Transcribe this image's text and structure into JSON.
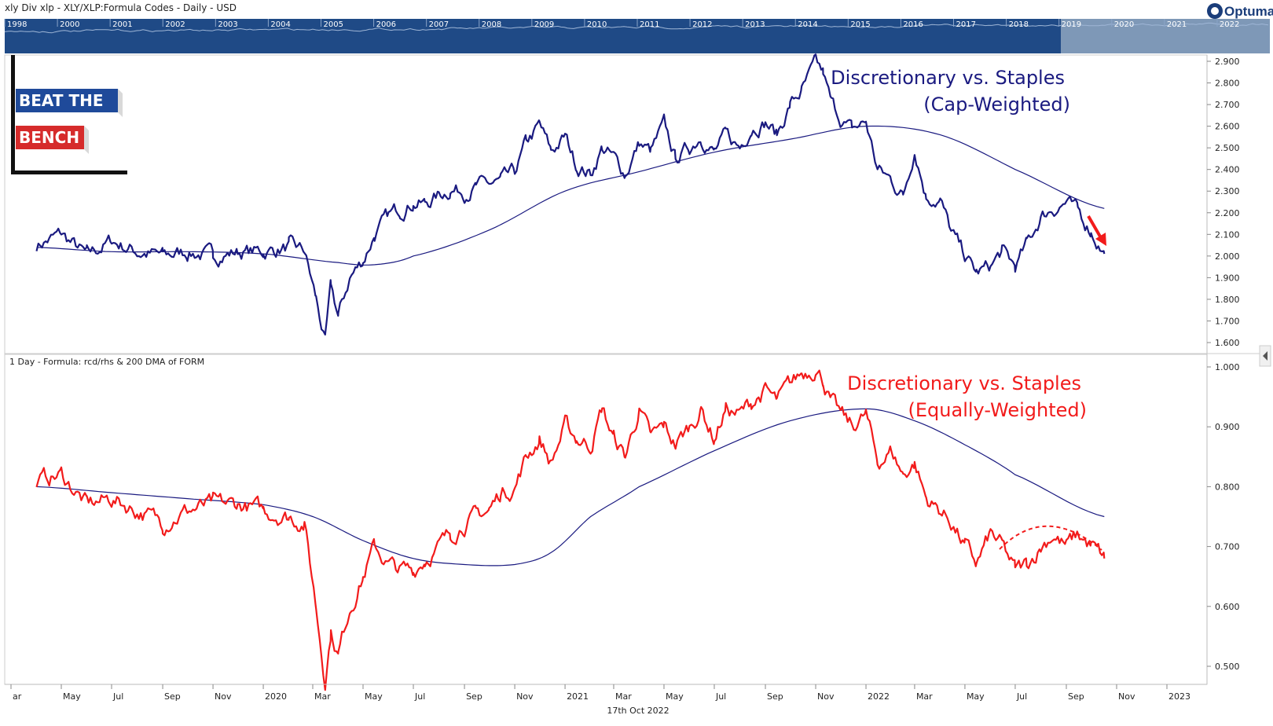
{
  "header": {
    "title": "xly Div xlp -  XLY/XLP:Formula Codes - Daily - USD",
    "brand": "Optuma"
  },
  "navigator": {
    "years": [
      "1998",
      "2000",
      "2001",
      "2002",
      "2003",
      "2004",
      "2005",
      "2006",
      "2007",
      "2008",
      "2009",
      "2010",
      "2011",
      "2012",
      "2013",
      "2014",
      "2015",
      "2016",
      "2017",
      "2018",
      "2019",
      "2020",
      "2021",
      "2022"
    ]
  },
  "logo": {
    "line1": "BEAT THE",
    "line2": "BENCH"
  },
  "footer": {
    "date": "17th Oct 2022"
  },
  "colors": {
    "navy": "#1a1a80",
    "red": "#f21b1b",
    "navigator_bg": "#1f4a86",
    "navigator_sel": "#8fa6c0",
    "logo_blue": "#1f4a9a",
    "logo_red": "#d62b2b"
  },
  "chart_data": [
    {
      "type": "line",
      "panel": "top",
      "series": [
        {
          "kind": "price",
          "color": "#1a1a80",
          "x": [
            "2019-04-01",
            "2019-05-01",
            "2019-06-01",
            "2019-07-01",
            "2019-08-01",
            "2019-09-01",
            "2019-10-01",
            "2019-11-01",
            "2019-12-01",
            "2020-01-01",
            "2020-02-01",
            "2020-02-20",
            "2020-03-05",
            "2020-03-16",
            "2020-03-23",
            "2020-04-01",
            "2020-04-15",
            "2020-05-01",
            "2020-05-15",
            "2020-06-01",
            "2020-06-15",
            "2020-07-01",
            "2020-07-15",
            "2020-08-01",
            "2020-08-15",
            "2020-09-01",
            "2020-09-15",
            "2020-10-01",
            "2020-10-15",
            "2020-11-01",
            "2020-11-15",
            "2020-12-01",
            "2020-12-15",
            "2021-01-01",
            "2021-01-15",
            "2021-02-01",
            "2021-02-15",
            "2021-03-01",
            "2021-03-15",
            "2021-04-01",
            "2021-04-15",
            "2021-05-01",
            "2021-05-15",
            "2021-06-01",
            "2021-06-15",
            "2021-07-01",
            "2021-07-15",
            "2021-08-01",
            "2021-08-15",
            "2021-09-01",
            "2021-09-15",
            "2021-10-01",
            "2021-10-15",
            "2021-11-01",
            "2021-11-10",
            "2021-11-20",
            "2021-12-01",
            "2021-12-15",
            "2022-01-01",
            "2022-01-15",
            "2022-02-01",
            "2022-02-15",
            "2022-03-01",
            "2022-03-15",
            "2022-04-01",
            "2022-04-15",
            "2022-05-01",
            "2022-05-15",
            "2022-06-01",
            "2022-06-15",
            "2022-07-01",
            "2022-07-15",
            "2022-08-01",
            "2022-08-15",
            "2022-09-01",
            "2022-09-15",
            "2022-10-01",
            "2022-10-17"
          ],
          "values": [
            2.05,
            2.1,
            2.0,
            2.07,
            2.02,
            2.0,
            2.02,
            2.0,
            2.02,
            2.02,
            2.04,
            2.02,
            1.8,
            1.6,
            1.85,
            1.72,
            1.9,
            1.98,
            2.1,
            2.18,
            2.22,
            2.25,
            2.24,
            2.28,
            2.31,
            2.3,
            2.32,
            2.33,
            2.34,
            2.38,
            2.52,
            2.6,
            2.48,
            2.55,
            2.42,
            2.38,
            2.5,
            2.45,
            2.38,
            2.52,
            2.48,
            2.6,
            2.45,
            2.5,
            2.56,
            2.48,
            2.55,
            2.5,
            2.6,
            2.62,
            2.56,
            2.7,
            2.76,
            2.88,
            2.84,
            2.7,
            2.64,
            2.58,
            2.62,
            2.4,
            2.35,
            2.28,
            2.5,
            2.28,
            2.26,
            2.1,
            2.0,
            1.92,
            1.95,
            2.02,
            1.95,
            2.05,
            2.18,
            2.22,
            2.25,
            2.2,
            2.12,
            2.01
          ]
        },
        {
          "kind": "200 DMA",
          "color": "#1a1a80",
          "x": [
            "2019-04-01",
            "2019-07-01",
            "2019-10-01",
            "2020-01-01",
            "2020-04-01",
            "2020-05-15",
            "2020-07-01",
            "2020-10-01",
            "2021-01-01",
            "2021-04-01",
            "2021-07-01",
            "2021-10-01",
            "2022-01-01",
            "2022-04-01",
            "2022-07-01",
            "2022-10-17"
          ],
          "values": [
            2.04,
            2.02,
            2.02,
            2.01,
            1.97,
            1.96,
            2.0,
            2.12,
            2.3,
            2.39,
            2.48,
            2.54,
            2.6,
            2.56,
            2.4,
            2.22
          ]
        }
      ],
      "ylim": [
        1.55,
        2.93
      ],
      "yticks": [
        "1.600",
        "1.700",
        "1.800",
        "1.900",
        "2.000",
        "2.100",
        "2.200",
        "2.300",
        "2.400",
        "2.500",
        "2.600",
        "2.700",
        "2.800",
        "2.900"
      ],
      "annotations": [
        "Discretionary vs. Staples",
        "(Cap-Weighted)"
      ]
    },
    {
      "type": "line",
      "panel": "bottom",
      "label": "1 Day - Formula:  rcd/rhs & 200 DMA of FORM",
      "series": [
        {
          "kind": "price",
          "color": "#f21b1b",
          "x": [
            "2019-04-01",
            "2019-05-01",
            "2019-06-01",
            "2019-07-01",
            "2019-08-01",
            "2019-09-01",
            "2019-10-01",
            "2019-11-01",
            "2019-12-01",
            "2020-01-01",
            "2020-02-01",
            "2020-02-20",
            "2020-03-05",
            "2020-03-16",
            "2020-03-23",
            "2020-04-01",
            "2020-04-15",
            "2020-05-01",
            "2020-05-15",
            "2020-06-01",
            "2020-06-15",
            "2020-07-01",
            "2020-07-15",
            "2020-08-01",
            "2020-08-15",
            "2020-09-01",
            "2020-09-15",
            "2020-10-01",
            "2020-10-15",
            "2020-11-01",
            "2020-11-15",
            "2020-12-01",
            "2020-12-15",
            "2021-01-01",
            "2021-01-15",
            "2021-02-01",
            "2021-02-15",
            "2021-03-01",
            "2021-03-15",
            "2021-04-01",
            "2021-04-15",
            "2021-05-01",
            "2021-05-15",
            "2021-06-01",
            "2021-06-15",
            "2021-07-01",
            "2021-07-15",
            "2021-08-01",
            "2021-08-15",
            "2021-09-01",
            "2021-09-15",
            "2021-10-01",
            "2021-10-15",
            "2021-11-01",
            "2021-11-10",
            "2021-11-20",
            "2021-12-01",
            "2021-12-15",
            "2022-01-01",
            "2022-01-15",
            "2022-02-01",
            "2022-02-15",
            "2022-03-01",
            "2022-03-15",
            "2022-04-01",
            "2022-04-15",
            "2022-05-01",
            "2022-05-15",
            "2022-06-01",
            "2022-06-15",
            "2022-07-01",
            "2022-07-15",
            "2022-08-01",
            "2022-08-15",
            "2022-09-01",
            "2022-09-15",
            "2022-10-01",
            "2022-10-17"
          ],
          "values": [
            0.81,
            0.82,
            0.77,
            0.78,
            0.76,
            0.74,
            0.76,
            0.77,
            0.77,
            0.76,
            0.75,
            0.74,
            0.6,
            0.48,
            0.56,
            0.52,
            0.6,
            0.65,
            0.7,
            0.67,
            0.66,
            0.66,
            0.68,
            0.7,
            0.72,
            0.74,
            0.75,
            0.76,
            0.79,
            0.8,
            0.85,
            0.88,
            0.84,
            0.9,
            0.88,
            0.87,
            0.93,
            0.88,
            0.85,
            0.93,
            0.88,
            0.9,
            0.87,
            0.9,
            0.93,
            0.88,
            0.93,
            0.92,
            0.94,
            0.96,
            0.94,
            0.97,
            0.99,
            1.0,
            0.98,
            0.94,
            0.92,
            0.9,
            0.92,
            0.84,
            0.86,
            0.82,
            0.84,
            0.78,
            0.76,
            0.74,
            0.7,
            0.67,
            0.72,
            0.7,
            0.66,
            0.67,
            0.7,
            0.72,
            0.7,
            0.72,
            0.7,
            0.68
          ]
        },
        {
          "kind": "200 DMA",
          "color": "#1a1a80",
          "x": [
            "2019-04-01",
            "2019-07-01",
            "2019-10-01",
            "2020-01-01",
            "2020-03-01",
            "2020-05-01",
            "2020-07-01",
            "2020-09-01",
            "2020-11-01",
            "2020-12-15",
            "2021-02-01",
            "2021-04-01",
            "2021-07-01",
            "2021-10-01",
            "2022-01-01",
            "2022-03-01",
            "2022-05-01",
            "2022-07-01",
            "2022-10-17"
          ],
          "values": [
            0.8,
            0.79,
            0.78,
            0.77,
            0.75,
            0.71,
            0.68,
            0.67,
            0.67,
            0.69,
            0.75,
            0.8,
            0.86,
            0.91,
            0.93,
            0.91,
            0.87,
            0.82,
            0.75
          ]
        }
      ],
      "ylim": [
        0.47,
        1.015
      ],
      "yticks": [
        "0.500",
        "0.600",
        "0.700",
        "0.800",
        "0.900",
        "1.000"
      ],
      "annotations": [
        "Discretionary vs. Staples",
        "(Equally-Weighted)"
      ]
    }
  ],
  "xaxis": {
    "ticks": [
      {
        "label": "ar",
        "date": "2019-03-01"
      },
      {
        "label": "May",
        "date": "2019-05-01"
      },
      {
        "label": "Jul",
        "date": "2019-07-01"
      },
      {
        "label": "Sep",
        "date": "2019-09-01"
      },
      {
        "label": "Nov",
        "date": "2019-11-01"
      },
      {
        "label": "2020",
        "date": "2020-01-01"
      },
      {
        "label": "Mar",
        "date": "2020-03-01"
      },
      {
        "label": "May",
        "date": "2020-05-01"
      },
      {
        "label": "Jul",
        "date": "2020-07-01"
      },
      {
        "label": "Sep",
        "date": "2020-09-01"
      },
      {
        "label": "Nov",
        "date": "2020-11-01"
      },
      {
        "label": "2021",
        "date": "2021-01-01"
      },
      {
        "label": "Mar",
        "date": "2021-03-01"
      },
      {
        "label": "May",
        "date": "2021-05-01"
      },
      {
        "label": "Jul",
        "date": "2021-07-01"
      },
      {
        "label": "Sep",
        "date": "2021-09-01"
      },
      {
        "label": "Nov",
        "date": "2021-11-01"
      },
      {
        "label": "2022",
        "date": "2022-01-01"
      },
      {
        "label": "Mar",
        "date": "2022-03-01"
      },
      {
        "label": "May",
        "date": "2022-05-01"
      },
      {
        "label": "Jul",
        "date": "2022-07-01"
      },
      {
        "label": "Sep",
        "date": "2022-09-01"
      },
      {
        "label": "Nov",
        "date": "2022-11-01"
      },
      {
        "label": "2023",
        "date": "2023-01-01"
      }
    ]
  }
}
